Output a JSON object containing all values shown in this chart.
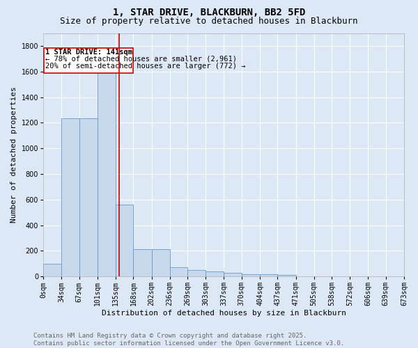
{
  "title": "1, STAR DRIVE, BLACKBURN, BB2 5FD",
  "subtitle": "Size of property relative to detached houses in Blackburn",
  "xlabel": "Distribution of detached houses by size in Blackburn",
  "ylabel": "Number of detached properties",
  "bar_color": "#c8d8ed",
  "bar_edge_color": "#6699cc",
  "background_color": "#dce8f5",
  "fig_background_color": "#dce8f5",
  "grid_color": "#ffffff",
  "annotation_box_color": "#cc0000",
  "vline_color": "#cc0000",
  "annotation_title": "1 STAR DRIVE: 141sqm",
  "annotation_line1": "← 78% of detached houses are smaller (2,961)",
  "annotation_line2": "20% of semi-detached houses are larger (772) →",
  "vline_x": 141,
  "bin_edges": [
    0,
    34,
    67,
    101,
    135,
    168,
    202,
    236,
    269,
    303,
    337,
    370,
    404,
    437,
    471,
    505,
    538,
    572,
    606,
    639,
    673
  ],
  "bin_counts": [
    97,
    1232,
    1232,
    1648,
    561,
    212,
    212,
    72,
    50,
    40,
    30,
    15,
    15,
    10,
    0,
    0,
    0,
    0,
    0,
    0
  ],
  "ylim": [
    0,
    1900
  ],
  "yticks": [
    0,
    200,
    400,
    600,
    800,
    1000,
    1200,
    1400,
    1600,
    1800
  ],
  "xtick_labels": [
    "0sqm",
    "34sqm",
    "67sqm",
    "101sqm",
    "135sqm",
    "168sqm",
    "202sqm",
    "236sqm",
    "269sqm",
    "303sqm",
    "337sqm",
    "370sqm",
    "404sqm",
    "437sqm",
    "471sqm",
    "505sqm",
    "538sqm",
    "572sqm",
    "606sqm",
    "639sqm",
    "673sqm"
  ],
  "footer_line1": "Contains HM Land Registry data © Crown copyright and database right 2025.",
  "footer_line2": "Contains public sector information licensed under the Open Government Licence v3.0.",
  "title_fontsize": 10,
  "subtitle_fontsize": 9,
  "axis_label_fontsize": 8,
  "tick_fontsize": 7,
  "annotation_fontsize": 7.5,
  "footer_fontsize": 6.5
}
